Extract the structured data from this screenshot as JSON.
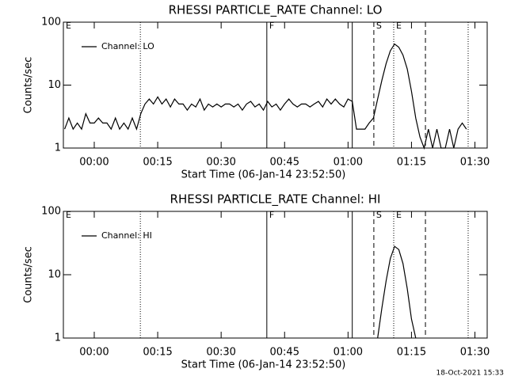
{
  "chart_data": [
    {
      "type": "line",
      "title": "RHESSI PARTICLE_RATE Channel: LO",
      "xlabel": "Start Time (06-Jan-14 23:52:50)",
      "ylabel": "Counts/sec",
      "ylog": true,
      "grid": false,
      "legend": "upper left",
      "xlim": [
        -7.3,
        92.9
      ],
      "ylim": [
        1,
        100
      ],
      "xticks": [
        {
          "value": 0,
          "label": "00:00"
        },
        {
          "value": 15,
          "label": "00:15"
        },
        {
          "value": 30,
          "label": "00:30"
        },
        {
          "value": 45,
          "label": "00:45"
        },
        {
          "value": 60,
          "label": "01:00"
        },
        {
          "value": 75,
          "label": "01:15"
        },
        {
          "value": 90,
          "label": "01:30"
        }
      ],
      "yticks": [
        1,
        10,
        100
      ],
      "markers": [
        {
          "x": -7.3,
          "style": "solid",
          "label": "E"
        },
        {
          "x": 10.9,
          "style": "dotted"
        },
        {
          "x": 40.8,
          "style": "solid",
          "label": "F"
        },
        {
          "x": 61,
          "style": "solid"
        },
        {
          "x": 66.1,
          "style": "dashed",
          "label": "S"
        },
        {
          "x": 70.8,
          "style": "dotted",
          "label": "E"
        },
        {
          "x": 78.3,
          "style": "dashed"
        },
        {
          "x": 88.4,
          "style": "dotted"
        }
      ],
      "x": [
        -7,
        -6,
        -5,
        -4,
        -3,
        -2,
        -1,
        0,
        1,
        2,
        3,
        4,
        5,
        6,
        7,
        8,
        9,
        10,
        11,
        12,
        13,
        14,
        15,
        16,
        17,
        18,
        19,
        20,
        21,
        22,
        23,
        24,
        25,
        26,
        27,
        28,
        29,
        30,
        31,
        32,
        33,
        34,
        35,
        36,
        37,
        38,
        39,
        40,
        41,
        42,
        43,
        44,
        45,
        46,
        47,
        48,
        49,
        50,
        51,
        52,
        53,
        54,
        55,
        56,
        57,
        58,
        59,
        60,
        61,
        62,
        63,
        64,
        65,
        66,
        67,
        68,
        69,
        70,
        71,
        72,
        73,
        74,
        75,
        76,
        77,
        78,
        79,
        80,
        81,
        82,
        83,
        84,
        85,
        86,
        87,
        88
      ],
      "series": [
        {
          "name": "Channel: LO",
          "color": "#000000",
          "values": [
            2,
            3,
            2,
            2.5,
            2,
            3.5,
            2.5,
            2.5,
            3,
            2.5,
            2.5,
            2,
            3,
            2,
            2.5,
            2,
            3,
            2,
            3.5,
            5,
            6,
            5,
            6.5,
            5,
            6,
            4.5,
            6,
            5,
            5,
            4,
            5,
            4.5,
            6,
            4,
            5,
            4.5,
            5,
            4.5,
            5,
            5,
            4.5,
            5,
            4,
            5,
            5.5,
            4.5,
            5,
            4,
            5.5,
            4.5,
            5,
            4,
            5,
            6,
            5,
            4.5,
            5,
            5,
            4.5,
            5,
            5.5,
            4.5,
            6,
            5,
            6,
            5,
            4.5,
            6,
            5.5,
            2,
            2,
            2,
            2.5,
            3,
            6,
            12,
            22,
            35,
            45,
            40,
            30,
            18,
            8,
            3,
            1.5,
            1,
            2,
            1,
            2,
            1,
            1,
            2,
            1,
            2,
            2.5,
            2
          ]
        }
      ]
    },
    {
      "type": "line",
      "title": "RHESSI PARTICLE_RATE Channel: HI",
      "xlabel": "Start Time (06-Jan-14 23:52:50)",
      "ylabel": "Counts/sec",
      "ylog": true,
      "grid": false,
      "legend": "upper left",
      "xlim": [
        -7.3,
        92.9
      ],
      "ylim": [
        1,
        100
      ],
      "xticks": [
        {
          "value": 0,
          "label": "00:00"
        },
        {
          "value": 15,
          "label": "00:15"
        },
        {
          "value": 30,
          "label": "00:30"
        },
        {
          "value": 45,
          "label": "00:45"
        },
        {
          "value": 60,
          "label": "01:00"
        },
        {
          "value": 75,
          "label": "01:15"
        },
        {
          "value": 90,
          "label": "01:30"
        }
      ],
      "yticks": [
        1,
        10,
        100
      ],
      "markers": [
        {
          "x": -7.3,
          "style": "solid",
          "label": "E"
        },
        {
          "x": 10.9,
          "style": "dotted"
        },
        {
          "x": 40.8,
          "style": "solid",
          "label": "F"
        },
        {
          "x": 61,
          "style": "solid"
        },
        {
          "x": 66.1,
          "style": "dashed",
          "label": "S"
        },
        {
          "x": 70.8,
          "style": "dotted",
          "label": "E"
        },
        {
          "x": 78.3,
          "style": "dashed"
        },
        {
          "x": 88.4,
          "style": "dotted"
        }
      ],
      "x": [
        -7,
        -6,
        -5,
        -4,
        -3,
        -2,
        -1,
        0,
        1,
        2,
        3,
        4,
        5,
        6,
        7,
        8,
        9,
        10,
        11,
        12,
        13,
        14,
        15,
        16,
        17,
        18,
        19,
        20,
        21,
        22,
        23,
        24,
        25,
        26,
        27,
        28,
        29,
        30,
        31,
        32,
        33,
        34,
        35,
        36,
        37,
        38,
        39,
        40,
        41,
        42,
        43,
        44,
        45,
        46,
        47,
        48,
        49,
        50,
        51,
        52,
        53,
        54,
        55,
        56,
        57,
        58,
        59,
        60,
        61,
        62,
        63,
        64,
        65,
        66,
        67,
        68,
        69,
        70,
        71,
        72,
        73,
        74,
        75,
        76,
        77,
        78,
        79,
        80,
        81,
        82,
        83,
        84,
        85,
        86,
        87,
        88
      ],
      "series": [
        {
          "name": "Channel: HI",
          "color": "#000000",
          "values": [
            null,
            null,
            null,
            null,
            null,
            null,
            null,
            null,
            null,
            null,
            null,
            null,
            null,
            null,
            null,
            null,
            null,
            null,
            null,
            null,
            null,
            null,
            null,
            null,
            null,
            null,
            null,
            null,
            null,
            null,
            null,
            null,
            null,
            null,
            null,
            null,
            null,
            null,
            null,
            null,
            null,
            null,
            null,
            null,
            null,
            null,
            null,
            null,
            null,
            null,
            null,
            null,
            null,
            null,
            null,
            null,
            null,
            null,
            null,
            null,
            null,
            null,
            null,
            null,
            null,
            null,
            null,
            null,
            null,
            null,
            null,
            null,
            null,
            null,
            1,
            3,
            8,
            18,
            28,
            25,
            15,
            6,
            2,
            1,
            null,
            null,
            null,
            null,
            null,
            null,
            null,
            null,
            null,
            null,
            null,
            null
          ]
        }
      ]
    }
  ],
  "footer": "18-Oct-2021 15:33"
}
